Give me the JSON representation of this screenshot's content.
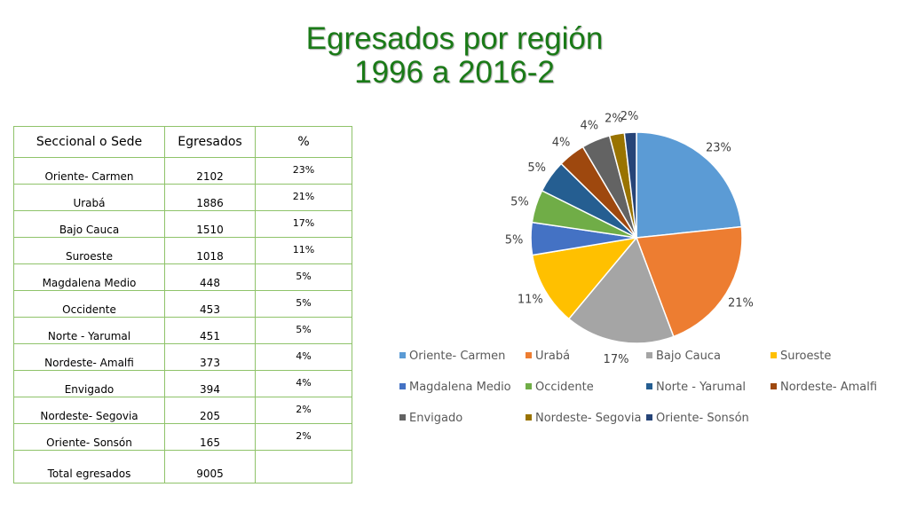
{
  "title": {
    "line1": "Egresados por región",
    "line2": "1996 a 2016-2"
  },
  "table": {
    "headers": [
      "Seccional o Sede",
      "Egresados",
      "%"
    ],
    "rows": [
      [
        "Oriente- Carmen",
        "2102",
        "23%"
      ],
      [
        "Urabá",
        "1886",
        "21%"
      ],
      [
        "Bajo Cauca",
        "1510",
        "17%"
      ],
      [
        "Suroeste",
        "1018",
        "11%"
      ],
      [
        "Magdalena Medio",
        "448",
        "5%"
      ],
      [
        "Occidente",
        "453",
        "5%"
      ],
      [
        "Norte - Yarumal",
        "451",
        "5%"
      ],
      [
        "Nordeste- Amalfi",
        "373",
        "4%"
      ],
      [
        "Envigado",
        "394",
        "4%"
      ],
      [
        "Nordeste- Segovia",
        "205",
        "2%"
      ],
      [
        "Oriente- Sonsón",
        "165",
        "2%"
      ]
    ],
    "total": [
      "Total egresados",
      "9005",
      ""
    ]
  },
  "chart_data": {
    "type": "pie",
    "title": "",
    "categories": [
      "Oriente- Carmen",
      "Urabá",
      "Bajo Cauca",
      "Suroeste",
      "Magdalena Medio",
      "Occidente",
      "Norte - Yarumal",
      "Nordeste- Amalfi",
      "Envigado",
      "Nordeste- Segovia",
      "Oriente- Sonsón"
    ],
    "values": [
      2102,
      1886,
      1510,
      1018,
      448,
      453,
      451,
      373,
      394,
      205,
      165
    ],
    "labels": [
      "23%",
      "21%",
      "17%",
      "11%",
      "5%",
      "5%",
      "5%",
      "4%",
      "4%",
      "2%",
      "2%"
    ],
    "colors": [
      "#5b9bd5",
      "#ed7d31",
      "#a5a5a5",
      "#ffc000",
      "#4472c4",
      "#70ad47",
      "#255e91",
      "#9e480e",
      "#636363",
      "#997300",
      "#264478"
    ],
    "legend_position": "bottom"
  }
}
